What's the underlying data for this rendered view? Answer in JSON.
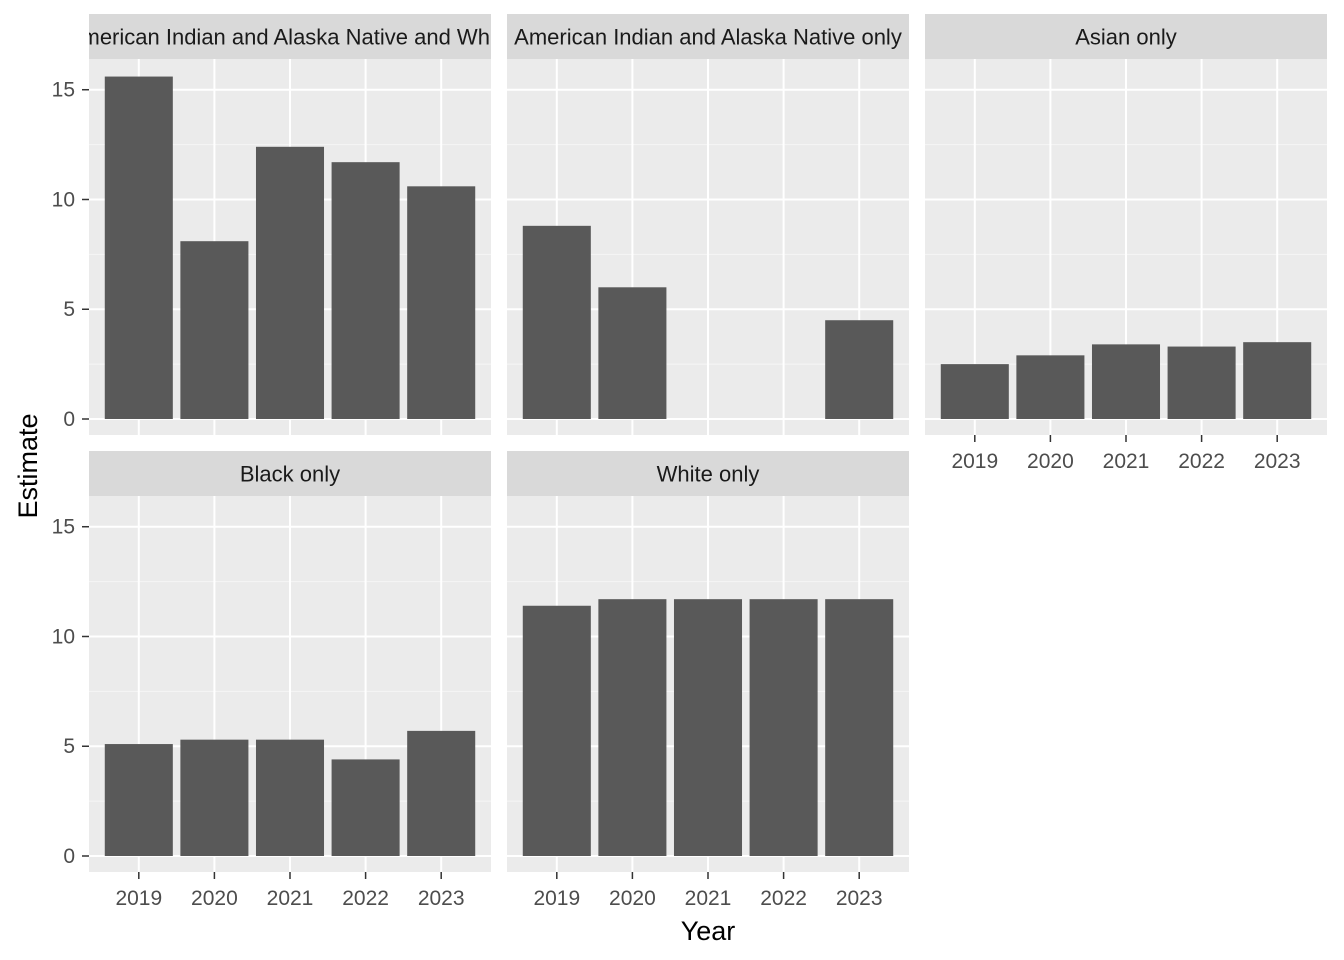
{
  "chart_data": {
    "type": "bar",
    "xlabel": "Year",
    "ylabel": "Estimate",
    "categories": [
      "2019",
      "2020",
      "2021",
      "2022",
      "2023"
    ],
    "ylim": [
      0,
      16.4
    ],
    "yticks": [
      0,
      5,
      10,
      15
    ],
    "grid": true,
    "bar_color": "#595959",
    "panel_background": "#ebebeb",
    "strip_background": "#d9d9d9",
    "grid_color": "#ffffff",
    "panels": [
      {
        "title": "American Indian and Alaska Native and White",
        "values": [
          15.6,
          8.1,
          12.4,
          11.7,
          10.6
        ]
      },
      {
        "title": "American Indian and Alaska Native only",
        "values": [
          8.8,
          6.0,
          null,
          null,
          4.5
        ]
      },
      {
        "title": "Asian only",
        "values": [
          2.5,
          2.9,
          3.4,
          3.3,
          3.5
        ]
      },
      {
        "title": "Black only",
        "values": [
          5.1,
          5.3,
          5.3,
          4.4,
          5.7
        ]
      },
      {
        "title": "White only",
        "values": [
          11.4,
          11.7,
          11.7,
          11.7,
          11.7
        ]
      }
    ]
  }
}
